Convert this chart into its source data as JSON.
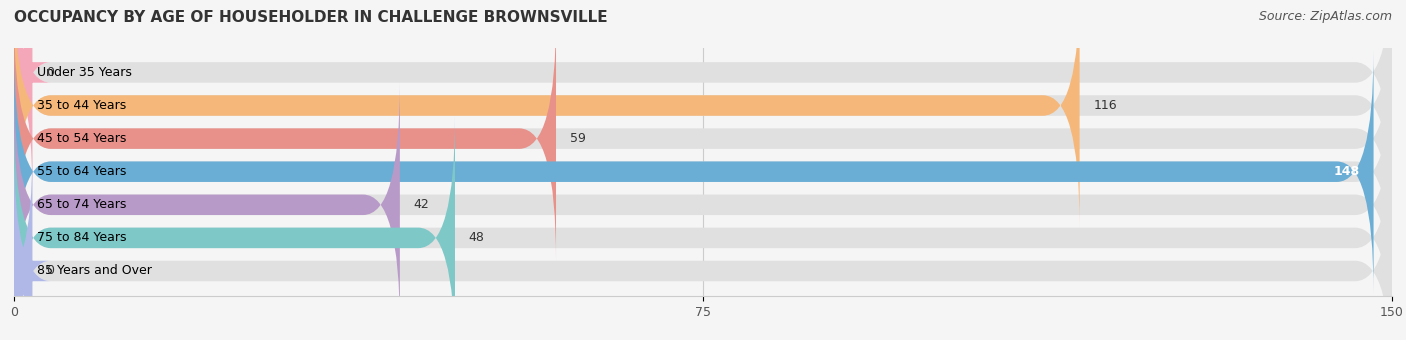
{
  "title": "OCCUPANCY BY AGE OF HOUSEHOLDER IN CHALLENGE BROWNSVILLE",
  "source": "Source: ZipAtlas.com",
  "categories": [
    "Under 35 Years",
    "35 to 44 Years",
    "45 to 54 Years",
    "55 to 64 Years",
    "65 to 74 Years",
    "75 to 84 Years",
    "85 Years and Over"
  ],
  "values": [
    0,
    116,
    59,
    148,
    42,
    48,
    0
  ],
  "bar_colors": [
    "#f4a7b9",
    "#f5b87a",
    "#e8918a",
    "#6aaed6",
    "#b89ac8",
    "#7ec8c8",
    "#b0b8e8"
  ],
  "bar_bg_color": "#e0e0e0",
  "xlim": [
    0,
    150
  ],
  "xticks": [
    0,
    75,
    150
  ],
  "title_fontsize": 11,
  "source_fontsize": 9,
  "label_fontsize": 9,
  "value_fontsize": 9,
  "background_color": "#f5f5f5",
  "bar_height": 0.62,
  "rounding_size": 4.0
}
